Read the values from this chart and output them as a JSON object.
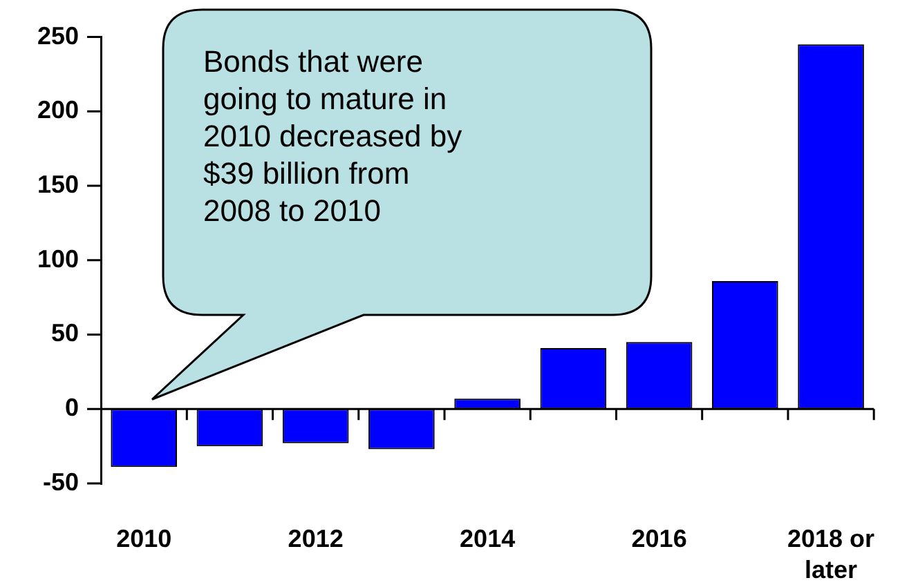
{
  "chart_data": {
    "type": "bar",
    "categories": [
      "2010",
      null,
      "2012",
      null,
      "2014",
      null,
      "2016",
      null,
      "2018 or later"
    ],
    "values": [
      -39,
      -25,
      -23,
      -27,
      7,
      41,
      45,
      86,
      245
    ],
    "color": "#0000ff",
    "ylim": [
      -50,
      250
    ],
    "yticks": [
      -50,
      0,
      50,
      100,
      150,
      200,
      250
    ],
    "legend": false,
    "annotations": [
      "Bonds that were going to mature in 2010 decreased by $39 billion from 2008 to 2010"
    ]
  }
}
